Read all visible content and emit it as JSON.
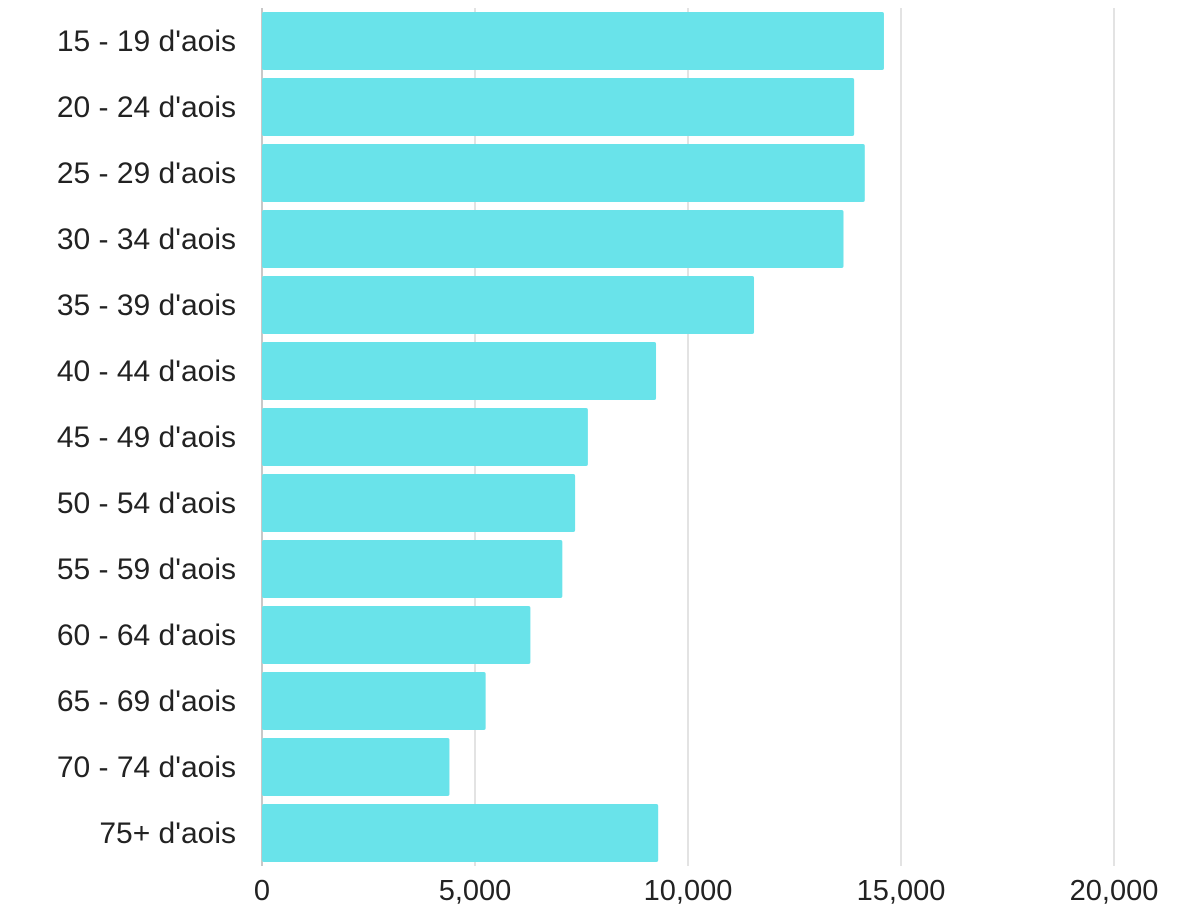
{
  "chart_data": {
    "type": "bar",
    "orientation": "horizontal",
    "categories": [
      "15 - 19 d'aois",
      "20 - 24 d'aois",
      "25 - 29 d'aois",
      "30 - 34 d'aois",
      "35 - 39 d'aois",
      "40 - 44 d'aois",
      "45 - 49 d'aois",
      "50 - 54 d'aois",
      "55 - 59 d'aois",
      "60 - 64 d'aois",
      "65 - 69 d'aois",
      "70 - 74 d'aois",
      "75+ d'aois"
    ],
    "values": [
      14600,
      13900,
      14150,
      13650,
      11550,
      9250,
      7650,
      7350,
      7050,
      6300,
      5250,
      4400,
      9300
    ],
    "xlim": [
      0,
      20000
    ],
    "xticks": [
      0,
      5000,
      10000,
      15000,
      20000
    ],
    "xtick_labels": [
      "0",
      "5,000",
      "10,000",
      "15,000",
      "20,000"
    ],
    "grid": "vertical",
    "legend": "none",
    "colors": {
      "bar": "#69E3EA",
      "grid": "#E3E3E3",
      "axis": "#C8C8C8",
      "text": "#222222"
    }
  }
}
